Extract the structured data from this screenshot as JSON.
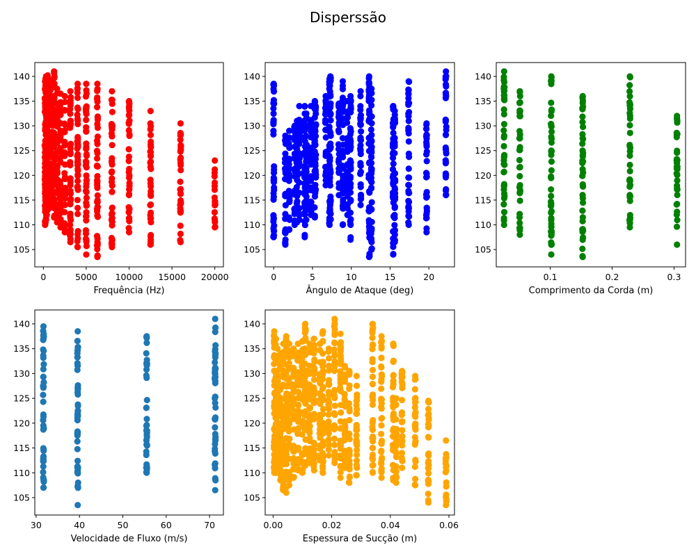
{
  "figure": {
    "suptitle": "Disperssão"
  },
  "chart_data": [
    {
      "type": "scatter",
      "xlabel": "Frequência (Hz)",
      "ylabel": "",
      "xlim": [
        -1000,
        21000
      ],
      "ylim": [
        101.5,
        142.8
      ],
      "xticks": [
        0,
        5000,
        10000,
        15000,
        20000
      ],
      "xtick_labels": [
        "0",
        "5000",
        "10000",
        "15000",
        "20000"
      ],
      "yticks": [
        105,
        110,
        115,
        120,
        125,
        130,
        135,
        140
      ],
      "ytick_labels": [
        "105",
        "110",
        "115",
        "120",
        "125",
        "130",
        "135",
        "140"
      ],
      "color": "#ff0000",
      "columns": [
        {
          "x": 200,
          "ymin": 110.0,
          "ymax": 139.0
        },
        {
          "x": 250,
          "ymin": 110.5,
          "ymax": 139.5
        },
        {
          "x": 315,
          "ymin": 111.0,
          "ymax": 140.0
        },
        {
          "x": 400,
          "ymin": 112.0,
          "ymax": 139.8
        },
        {
          "x": 500,
          "ymin": 113.0,
          "ymax": 140.2
        },
        {
          "x": 630,
          "ymin": 114.0,
          "ymax": 139.5
        },
        {
          "x": 800,
          "ymin": 114.5,
          "ymax": 139.0
        },
        {
          "x": 1000,
          "ymin": 113.5,
          "ymax": 138.5
        },
        {
          "x": 1250,
          "ymin": 111.5,
          "ymax": 141.0
        },
        {
          "x": 1600,
          "ymin": 110.5,
          "ymax": 137.5
        },
        {
          "x": 2000,
          "ymin": 109.5,
          "ymax": 136.5
        },
        {
          "x": 2500,
          "ymin": 108.5,
          "ymax": 136.0
        },
        {
          "x": 3150,
          "ymin": 106.5,
          "ymax": 137.0
        },
        {
          "x": 4000,
          "ymin": 105.5,
          "ymax": 138.5
        },
        {
          "x": 5000,
          "ymin": 104.0,
          "ymax": 138.5
        },
        {
          "x": 6300,
          "ymin": 103.5,
          "ymax": 138.5
        },
        {
          "x": 8000,
          "ymin": 105.5,
          "ymax": 137.0
        },
        {
          "x": 10000,
          "ymin": 108.5,
          "ymax": 135.0
        },
        {
          "x": 12500,
          "ymin": 106.0,
          "ymax": 133.0
        },
        {
          "x": 16000,
          "ymin": 106.5,
          "ymax": 130.5
        },
        {
          "x": 20000,
          "ymin": 109.5,
          "ymax": 123.0
        }
      ]
    },
    {
      "type": "scatter",
      "xlabel": "Ângulo de Ataque (deg)",
      "ylabel": "",
      "xlim": [
        -1.1,
        23.3
      ],
      "ylim": [
        101.5,
        142.8
      ],
      "xticks": [
        0,
        5,
        10,
        15,
        20
      ],
      "xtick_labels": [
        "0",
        "5",
        "10",
        "15",
        "20"
      ],
      "yticks": [
        105,
        110,
        115,
        120,
        125,
        130,
        135,
        140
      ],
      "ytick_labels": [
        "105",
        "110",
        "115",
        "120",
        "125",
        "130",
        "135",
        "140"
      ],
      "color": "#0000ff",
      "columns": [
        {
          "x": 0,
          "ymin": 107.5,
          "ymax": 138.5
        },
        {
          "x": 1.5,
          "ymin": 106.0,
          "ymax": 128.0
        },
        {
          "x": 2.0,
          "ymin": 109.0,
          "ymax": 129.0
        },
        {
          "x": 2.7,
          "ymin": 110.0,
          "ymax": 130.0
        },
        {
          "x": 3.0,
          "ymin": 110.5,
          "ymax": 131.0
        },
        {
          "x": 3.3,
          "ymin": 111.0,
          "ymax": 134.0
        },
        {
          "x": 4.0,
          "ymin": 107.5,
          "ymax": 134.0
        },
        {
          "x": 4.2,
          "ymin": 111.0,
          "ymax": 132.5
        },
        {
          "x": 4.8,
          "ymin": 112.0,
          "ymax": 134.0
        },
        {
          "x": 5.3,
          "ymin": 111.5,
          "ymax": 135.0
        },
        {
          "x": 5.4,
          "ymin": 117.0,
          "ymax": 134.0
        },
        {
          "x": 6.7,
          "ymin": 118.0,
          "ymax": 136.0
        },
        {
          "x": 7.2,
          "ymin": 110.0,
          "ymax": 139.5
        },
        {
          "x": 7.3,
          "ymin": 111.0,
          "ymax": 140.0
        },
        {
          "x": 8.4,
          "ymin": 116.0,
          "ymax": 134.5
        },
        {
          "x": 8.9,
          "ymin": 110.0,
          "ymax": 139.0
        },
        {
          "x": 9.5,
          "ymin": 112.0,
          "ymax": 135.0
        },
        {
          "x": 9.9,
          "ymin": 107.0,
          "ymax": 136.0
        },
        {
          "x": 11.2,
          "ymin": 114.0,
          "ymax": 137.0
        },
        {
          "x": 12.3,
          "ymin": 103.5,
          "ymax": 140.0
        },
        {
          "x": 12.6,
          "ymin": 105.0,
          "ymax": 137.5
        },
        {
          "x": 15.4,
          "ymin": 104.0,
          "ymax": 134.0
        },
        {
          "x": 15.6,
          "ymin": 106.5,
          "ymax": 133.0
        },
        {
          "x": 17.4,
          "ymin": 110.0,
          "ymax": 139.0
        },
        {
          "x": 19.7,
          "ymin": 108.5,
          "ymax": 130.5
        },
        {
          "x": 22.2,
          "ymin": 116.0,
          "ymax": 141.0
        }
      ]
    },
    {
      "type": "scatter",
      "xlabel": "Comprimento da Corda (m)",
      "ylabel": "",
      "xlim": [
        0.0127,
        0.3186
      ],
      "ylim": [
        101.5,
        142.8
      ],
      "xticks": [
        0.1,
        0.2,
        0.3
      ],
      "xtick_labels": [
        "0.1",
        "0.2",
        "0.3"
      ],
      "yticks": [
        105,
        110,
        115,
        120,
        125,
        130,
        135,
        140
      ],
      "ytick_labels": [
        "105",
        "110",
        "115",
        "120",
        "125",
        "130",
        "135",
        "140"
      ],
      "color": "#008000",
      "columns": [
        {
          "x": 0.0254,
          "ymin": 110.0,
          "ymax": 141.0
        },
        {
          "x": 0.0508,
          "ymin": 108.0,
          "ymax": 137.0
        },
        {
          "x": 0.1016,
          "ymin": 104.0,
          "ymax": 140.0
        },
        {
          "x": 0.1524,
          "ymin": 103.5,
          "ymax": 136.0
        },
        {
          "x": 0.2286,
          "ymin": 109.5,
          "ymax": 140.0
        },
        {
          "x": 0.3048,
          "ymin": 106.0,
          "ymax": 132.0
        }
      ]
    },
    {
      "type": "scatter",
      "xlabel": "Velocidade de Fluxo (m/s)",
      "ylabel": "",
      "xlim": [
        29.7,
        73.2
      ],
      "ylim": [
        101.5,
        142.8
      ],
      "xticks": [
        30,
        40,
        50,
        60,
        70
      ],
      "xtick_labels": [
        "30",
        "40",
        "50",
        "60",
        "70"
      ],
      "yticks": [
        105,
        110,
        115,
        120,
        125,
        130,
        135,
        140
      ],
      "ytick_labels": [
        "105",
        "110",
        "115",
        "120",
        "125",
        "130",
        "135",
        "140"
      ],
      "color": "#1f77b4",
      "columns": [
        {
          "x": 31.7,
          "ymin": 107.0,
          "ymax": 139.5
        },
        {
          "x": 39.6,
          "ymin": 103.5,
          "ymax": 138.5
        },
        {
          "x": 55.5,
          "ymin": 110.0,
          "ymax": 137.5
        },
        {
          "x": 71.3,
          "ymin": 106.5,
          "ymax": 141.0
        }
      ]
    },
    {
      "type": "scatter",
      "xlabel": "Espessura de Sucção (m)",
      "ylabel": "",
      "xlim": [
        -0.0027,
        0.0619
      ],
      "ylim": [
        101.5,
        142.8
      ],
      "xticks": [
        0.0,
        0.02,
        0.04,
        0.06
      ],
      "xtick_labels": [
        "0.00",
        "0.02",
        "0.04",
        "0.06"
      ],
      "yticks": [
        105,
        110,
        115,
        120,
        125,
        130,
        135,
        140
      ],
      "ytick_labels": [
        "105",
        "110",
        "115",
        "120",
        "125",
        "130",
        "135",
        "140"
      ],
      "color": "#ffa500",
      "columns": [
        {
          "x": 0.0004,
          "ymin": 110.0,
          "ymax": 138.5
        },
        {
          "x": 0.0009,
          "ymin": 110.0,
          "ymax": 137.0
        },
        {
          "x": 0.0015,
          "ymin": 111.0,
          "ymax": 135.0
        },
        {
          "x": 0.0025,
          "ymin": 108.5,
          "ymax": 134.0
        },
        {
          "x": 0.0035,
          "ymin": 106.5,
          "ymax": 136.0
        },
        {
          "x": 0.0045,
          "ymin": 106.0,
          "ymax": 137.5
        },
        {
          "x": 0.0055,
          "ymin": 107.5,
          "ymax": 136.0
        },
        {
          "x": 0.007,
          "ymin": 109.0,
          "ymax": 135.0
        },
        {
          "x": 0.0085,
          "ymin": 110.5,
          "ymax": 136.0
        },
        {
          "x": 0.01,
          "ymin": 110.0,
          "ymax": 136.5
        },
        {
          "x": 0.011,
          "ymin": 111.5,
          "ymax": 140.0
        },
        {
          "x": 0.0125,
          "ymin": 112.0,
          "ymax": 136.0
        },
        {
          "x": 0.014,
          "ymin": 110.5,
          "ymax": 137.0
        },
        {
          "x": 0.016,
          "ymin": 112.5,
          "ymax": 136.0
        },
        {
          "x": 0.017,
          "ymin": 110.0,
          "ymax": 138.5
        },
        {
          "x": 0.019,
          "ymin": 113.5,
          "ymax": 135.0
        },
        {
          "x": 0.021,
          "ymin": 112.0,
          "ymax": 141.0
        },
        {
          "x": 0.023,
          "ymin": 109.0,
          "ymax": 138.0
        },
        {
          "x": 0.0245,
          "ymin": 111.0,
          "ymax": 131.5
        },
        {
          "x": 0.026,
          "ymin": 108.0,
          "ymax": 130.5
        },
        {
          "x": 0.0285,
          "ymin": 109.5,
          "ymax": 129.5
        },
        {
          "x": 0.034,
          "ymin": 110.0,
          "ymax": 140.0
        },
        {
          "x": 0.037,
          "ymin": 109.0,
          "ymax": 137.5
        },
        {
          "x": 0.041,
          "ymin": 108.5,
          "ymax": 136.0
        },
        {
          "x": 0.042,
          "ymin": 108.0,
          "ymax": 125.0
        },
        {
          "x": 0.044,
          "ymin": 111.0,
          "ymax": 130.5
        },
        {
          "x": 0.0485,
          "ymin": 107.5,
          "ymax": 129.5
        },
        {
          "x": 0.053,
          "ymin": 104.0,
          "ymax": 124.5
        },
        {
          "x": 0.059,
          "ymin": 103.5,
          "ymax": 116.5
        }
      ]
    }
  ]
}
